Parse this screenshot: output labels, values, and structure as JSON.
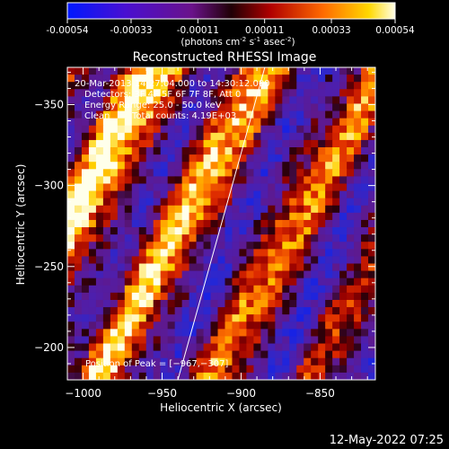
{
  "colorbar": {
    "ticks": [
      "-0.00054",
      "-0.00033",
      "-0.00011",
      "0.00011",
      "0.00033",
      "0.00054"
    ],
    "tick_values": [
      -0.00054,
      -0.00033,
      -0.00011,
      0.00011,
      0.00033,
      0.00054
    ],
    "range": [
      -0.00054,
      0.00054
    ],
    "unit_label_prefix": "(photons cm",
    "unit_sup1": "-2",
    "unit_mid": " s",
    "unit_sup2": "-1",
    "unit_mid2": " asec",
    "unit_sup3": "-2",
    "unit_suffix": ")"
  },
  "chart_data": {
    "type": "heatmap",
    "title": "Reconstructed RHESSI Image",
    "xlabel": "Heliocentric X (arcsec)",
    "ylabel": "Heliocentric Y (arcsec)",
    "xlim": [
      -1010,
      -815
    ],
    "ylim": [
      -373,
      -180
    ],
    "x_ticks": [
      -1000,
      -950,
      -900,
      -850
    ],
    "y_ticks": [
      -200,
      -250,
      -300,
      -350
    ],
    "x_tick_labels": [
      "−1000",
      "−950",
      "−900",
      "−850"
    ],
    "y_tick_labels": [
      "−200",
      "−250",
      "−300",
      "−350"
    ],
    "colormap": "blue-purple-red-yellow-white",
    "limb_curve": {
      "x": [
        -940,
        -920,
        -900,
        -885
      ],
      "y": [
        -180,
        -250,
        -320,
        -373
      ]
    },
    "peak": {
      "x": -967,
      "y": -307
    }
  },
  "annotations": {
    "time_range": "20-Mar-2013 14:27:04.000 to 14:30:12.000",
    "detectors": "Detectors: 3F 4F 5F 6F 7F 8F, Att 0",
    "energy": "Energy Range: 25.0 - 50.0 keV",
    "method": "Clean",
    "counts": "Total counts: 4.19E+03",
    "peak_text": "Position of Peak = [−967,−307]"
  },
  "footer": {
    "timestamp": "12-May-2022 07:25"
  }
}
